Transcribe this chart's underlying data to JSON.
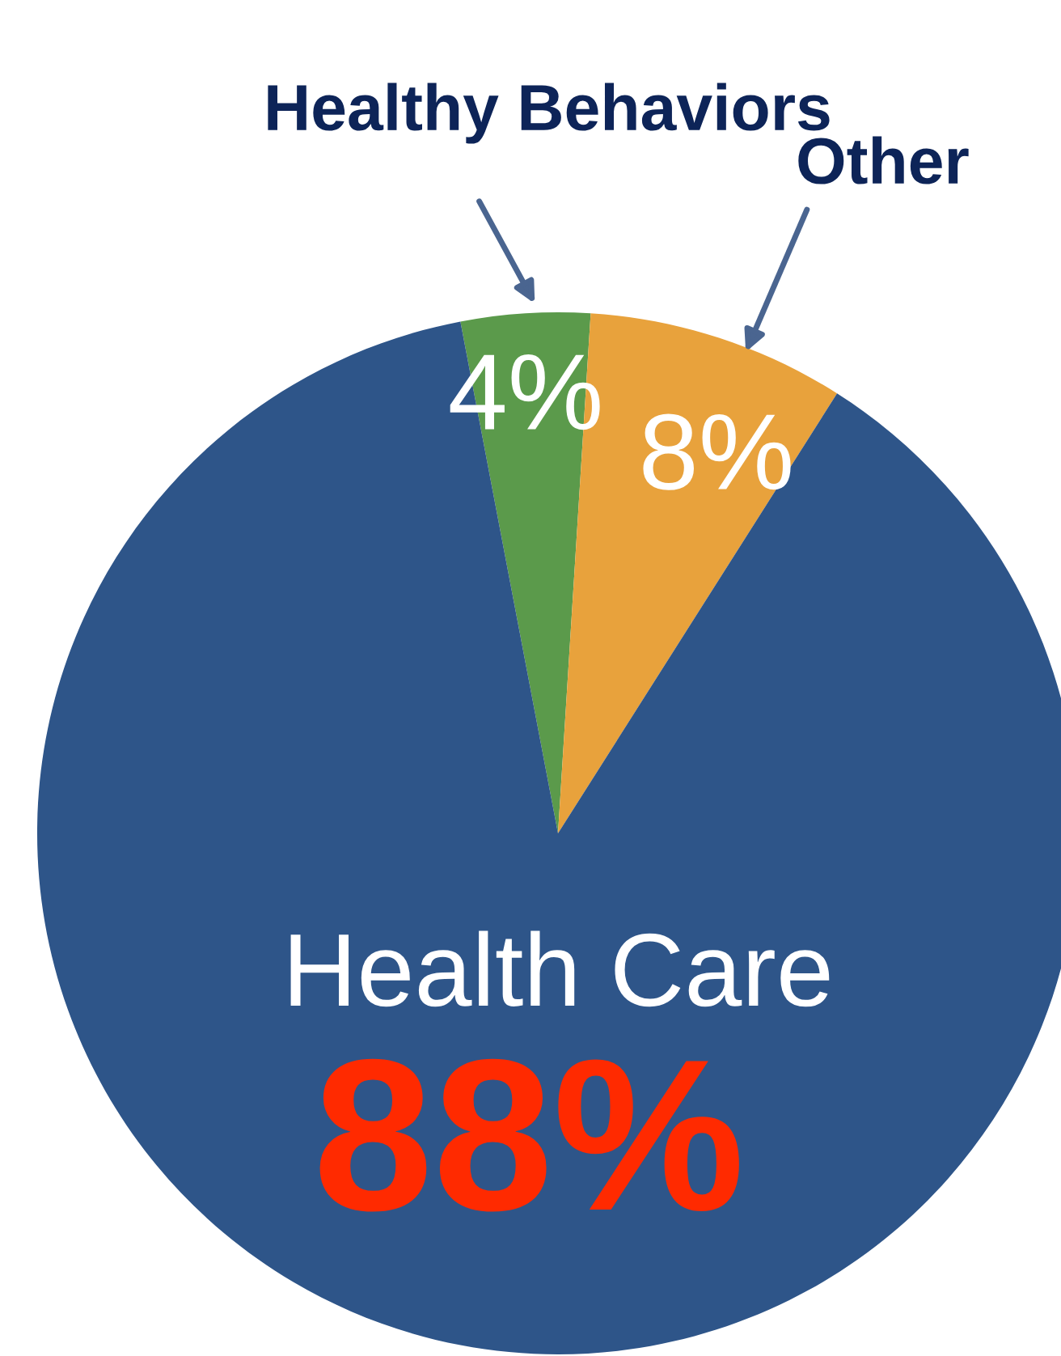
{
  "chart_data": {
    "type": "pie",
    "categories": [
      "Healthy Behaviors",
      "Other",
      "Health Care"
    ],
    "values": [
      4,
      8,
      88
    ],
    "value_labels": [
      "4%",
      "8%",
      "88%"
    ],
    "colors": [
      "#5b9a4b",
      "#e8a23c",
      "#2e5589"
    ]
  }
}
